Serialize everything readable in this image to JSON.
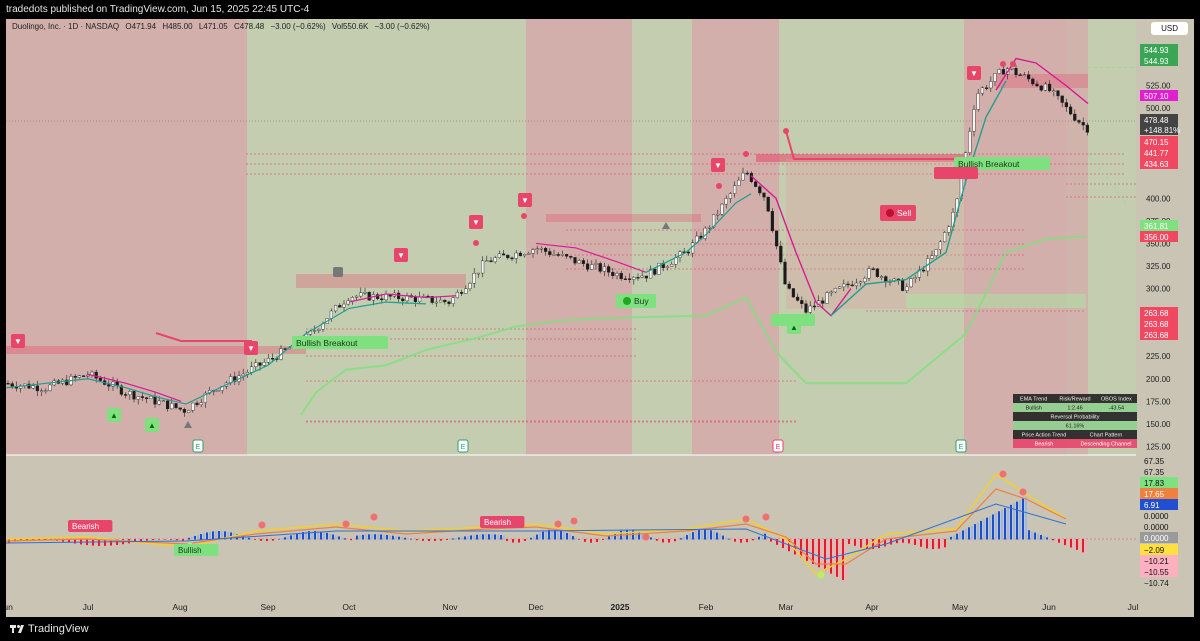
{
  "header": {
    "publish_info": "tradedots published on TradingView.com, Jun 15, 2025 22:45 UTC-4"
  },
  "legend": {
    "symbol": "Duolingo, Inc. · 1D · NASDAQ",
    "open": "O471.94",
    "high": "H485.00",
    "low": "L471.05",
    "close": "C478.48",
    "change": "−3.00 (−0.62%)",
    "volume": "Vol550.6K",
    "volume_change": "−3.00 (−0.62%)",
    "currency": "USD"
  },
  "footer": {
    "brand": "TradingView"
  },
  "colors": {
    "bull_bg": "#c4cdb0",
    "bear_bg": "#d5a9a9",
    "pane_bg": "#c9c4b4",
    "sell": "#e8456a",
    "buy": "#7ee07e",
    "ema_pink": "#d81b93",
    "ema_teal": "#1f9f8e"
  },
  "chart_data": [
    {
      "type": "candlestick",
      "title": "Duolingo, Inc. · 1D · NASDAQ",
      "x_ticks": [
        "Jun",
        "Jul",
        "Aug",
        "Sep",
        "Oct",
        "Nov",
        "Dec",
        "2025",
        "Feb",
        "Mar",
        "Apr",
        "May",
        "Jun",
        "Jul"
      ],
      "y_ticks": [
        125,
        150,
        175,
        200,
        225,
        250,
        275,
        300,
        325,
        350,
        375,
        400,
        425,
        450,
        475,
        500,
        525
      ],
      "y_tick_labels": [
        "125.00",
        "150.00",
        "175.00",
        "200.00",
        "225.00",
        "250.00",
        "275.00",
        "300.00",
        "325.00",
        "350.00",
        "375.00",
        "400.00",
        "",
        "",
        "",
        "500.00",
        "525.00"
      ],
      "ylim": [
        110,
        565
      ],
      "close_series_approx": [
        {
          "month": "Jun",
          "close": 195
        },
        {
          "month": "Jul",
          "close": 205
        },
        {
          "month": "Aug",
          "close": 172
        },
        {
          "month": "Sep",
          "close": 220
        },
        {
          "month": "Oct",
          "close": 292
        },
        {
          "month": "Nov",
          "close": 290
        },
        {
          "month": "Dec",
          "close": 340
        },
        {
          "month": "2025",
          "close": 315
        },
        {
          "month": "Feb",
          "close": 360
        },
        {
          "month": "Mar",
          "close": 280
        },
        {
          "month": "Apr",
          "close": 320
        },
        {
          "month": "May",
          "close": 520
        },
        {
          "month": "Jun",
          "close": 478.48
        }
      ],
      "last_close": 478.48,
      "price_badges": [
        {
          "value": "544.93",
          "color": "#3aa655"
        },
        {
          "value": "544.93",
          "color": "#3aa655"
        },
        {
          "value": "525.00",
          "color": "none"
        },
        {
          "value": "507.10",
          "color": "#e020d0"
        },
        {
          "value": "478.48",
          "color": "#444444"
        },
        {
          "value": "+148.81%",
          "color": "#444444"
        },
        {
          "value": "470.15",
          "color": "#f04860"
        },
        {
          "value": "441.77",
          "color": "#f04860"
        },
        {
          "value": "434.63",
          "color": "#f04860"
        },
        {
          "value": "361.81",
          "color": "#7ee07e"
        },
        {
          "value": "356.00",
          "color": "#f04860"
        },
        {
          "value": "263.68",
          "color": "#f04860"
        },
        {
          "value": "263.68",
          "color": "#f04860"
        },
        {
          "value": "263.68",
          "color": "#f04860"
        }
      ],
      "annotations": [
        "Bullish Breakout",
        "Bullish Breakout",
        "Buy",
        "Sell"
      ],
      "earnings_label": "E"
    },
    {
      "type": "oscillator",
      "y_badges": [
        {
          "value": "67.35",
          "color": "none"
        },
        {
          "value": "67.35",
          "color": "none"
        },
        {
          "value": "17.83",
          "color": "#7ee07e"
        },
        {
          "value": "17.65",
          "color": "#f08040"
        },
        {
          "value": "6.91",
          "color": "#2050d0"
        },
        {
          "value": "0.0000",
          "color": "none"
        },
        {
          "value": "0.0000",
          "color": "none"
        },
        {
          "value": "0.0000",
          "color": "#9a9a9a"
        },
        {
          "value": "−2.09",
          "color": "#ffe040"
        },
        {
          "value": "−10.21",
          "color": "#ffb0c0"
        },
        {
          "value": "−10.55",
          "color": "#ffb0c0"
        },
        {
          "value": "−10.74",
          "color": "none"
        }
      ],
      "labels": [
        "Bearish",
        "Bullish",
        "Bearish"
      ]
    }
  ],
  "info_table": {
    "rows": [
      [
        "EMA Trend",
        "Risk/Reward",
        "OBOS Index"
      ],
      [
        "Bullish",
        "1:2.46",
        "-43.54"
      ],
      [
        "Reversal Probability"
      ],
      [
        "61.16%"
      ],
      [
        "Price Action Trend",
        "Chart Pattern"
      ],
      [
        "Bearish",
        "Descending Channel"
      ]
    ]
  }
}
